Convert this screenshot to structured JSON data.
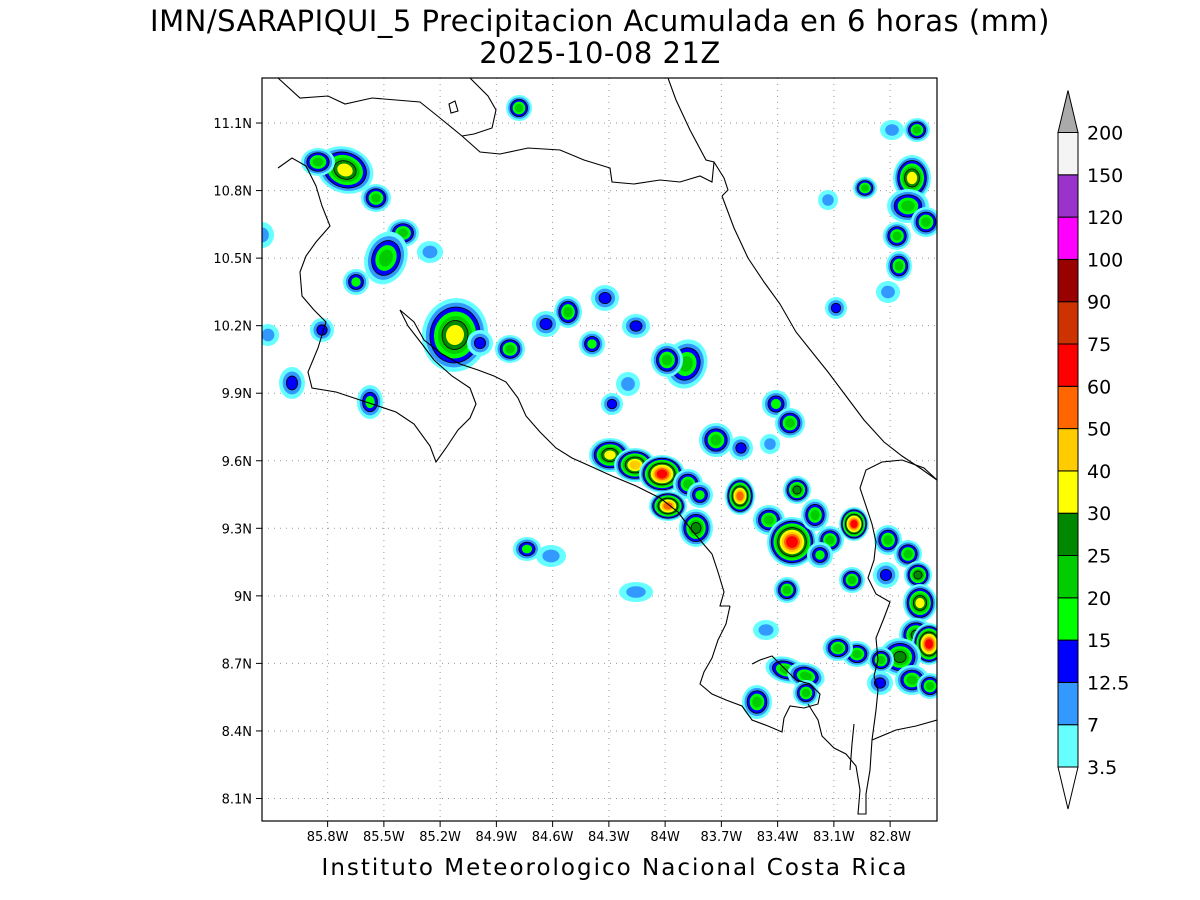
{
  "title": {
    "line1": "IMN/SARAPIQUI_5 Precipitacion Acumulada en 6 horas (mm)",
    "line2": "2025-10-08 21Z"
  },
  "credit": "Instituto Meteorologico Nacional Costa Rica",
  "map": {
    "lon_range": [
      -86.15,
      -82.55
    ],
    "lat_range": [
      8.0,
      11.3
    ],
    "grid": true,
    "lat_ticks": [
      {
        "value": 8.1,
        "label": "8.1N"
      },
      {
        "value": 8.4,
        "label": "8.4N"
      },
      {
        "value": 8.7,
        "label": "8.7N"
      },
      {
        "value": 9.0,
        "label": "9N"
      },
      {
        "value": 9.3,
        "label": "9.3N"
      },
      {
        "value": 9.6,
        "label": "9.6N"
      },
      {
        "value": 9.9,
        "label": "9.9N"
      },
      {
        "value": 10.2,
        "label": "10.2N"
      },
      {
        "value": 10.5,
        "label": "10.5N"
      },
      {
        "value": 10.8,
        "label": "10.8N"
      },
      {
        "value": 11.1,
        "label": "11.1N"
      }
    ],
    "lon_ticks": [
      {
        "value": -85.8,
        "label": "85.8W"
      },
      {
        "value": -85.5,
        "label": "85.5W"
      },
      {
        "value": -85.2,
        "label": "85.2W"
      },
      {
        "value": -84.9,
        "label": "84.9W"
      },
      {
        "value": -84.6,
        "label": "84.6W"
      },
      {
        "value": -84.3,
        "label": "84.3W"
      },
      {
        "value": -84.0,
        "label": "84W"
      },
      {
        "value": -83.7,
        "label": "83.7W"
      },
      {
        "value": -83.4,
        "label": "83.4W"
      },
      {
        "value": -83.1,
        "label": "83.1W"
      },
      {
        "value": -82.8,
        "label": "82.8W"
      }
    ]
  },
  "legend": {
    "labels": [
      "3.5",
      "7",
      "12.5",
      "15",
      "20",
      "25",
      "30",
      "40",
      "50",
      "60",
      "75",
      "90",
      "100",
      "120",
      "150",
      "200"
    ],
    "colors": [
      "#ffffff",
      "#66ffff",
      "#3399ff",
      "#0000ff",
      "#00ff00",
      "#00cc00",
      "#008800",
      "#ffff00",
      "#ffcc00",
      "#ff6600",
      "#ff0000",
      "#cc3300",
      "#990000",
      "#ff00ff",
      "#9933cc",
      "#f4f4f4",
      "#aaaaaa"
    ]
  }
}
